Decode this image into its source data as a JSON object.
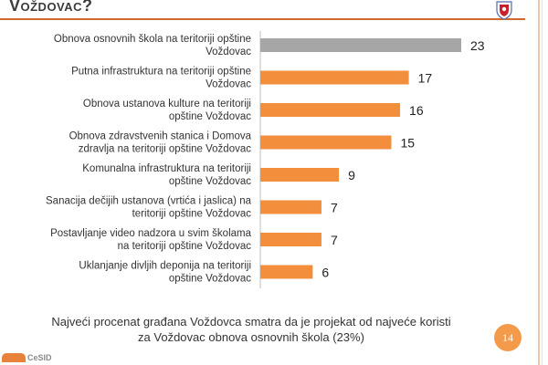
{
  "slide": {
    "title": "Voždovac?",
    "caption_line1": "Najveći procenat građana Voždovca smatra da je projekat od najveće koristi",
    "caption_line2": "za Voždovac obnova osnovnih škola (23%)",
    "page_number": "14",
    "footer_logo_text": "CeSID"
  },
  "colors": {
    "highlight_bar": "#a6a6a6",
    "bar": "#f28e3c",
    "accent": "#d06a2a"
  },
  "chart_data": {
    "type": "bar",
    "orientation": "horizontal",
    "categories": [
      [
        "Obnova osnovnih škola na teritoriji opštine",
        "Voždovac"
      ],
      [
        "Putna infrastruktura na teritoriji opštine",
        "Voždovac"
      ],
      [
        "Obnova ustanova kulture na teritoriji",
        "opštine Voždovac"
      ],
      [
        "Obnova zdravstvenih stanica i Domova",
        "zdravlja na teritoriji opštine Voždovac"
      ],
      [
        "Komunalna infrastruktura na teritoriji",
        "opštine Voždovac"
      ],
      [
        "Sanacija dečijih ustanova (vrtića i jaslica) na",
        "teritoriji opštine Voždovac"
      ],
      [
        "Postavljanje video nadzora u svim školama",
        "na teritoriji opštine Voždovac"
      ],
      [
        "Uklanjanje divljih deponija na teritoriji",
        "opštine Voždovac"
      ]
    ],
    "values": [
      23,
      17,
      16,
      15,
      9,
      7,
      7,
      6
    ],
    "highlight_index": 0,
    "xlim": [
      0,
      23
    ],
    "grid": false
  }
}
